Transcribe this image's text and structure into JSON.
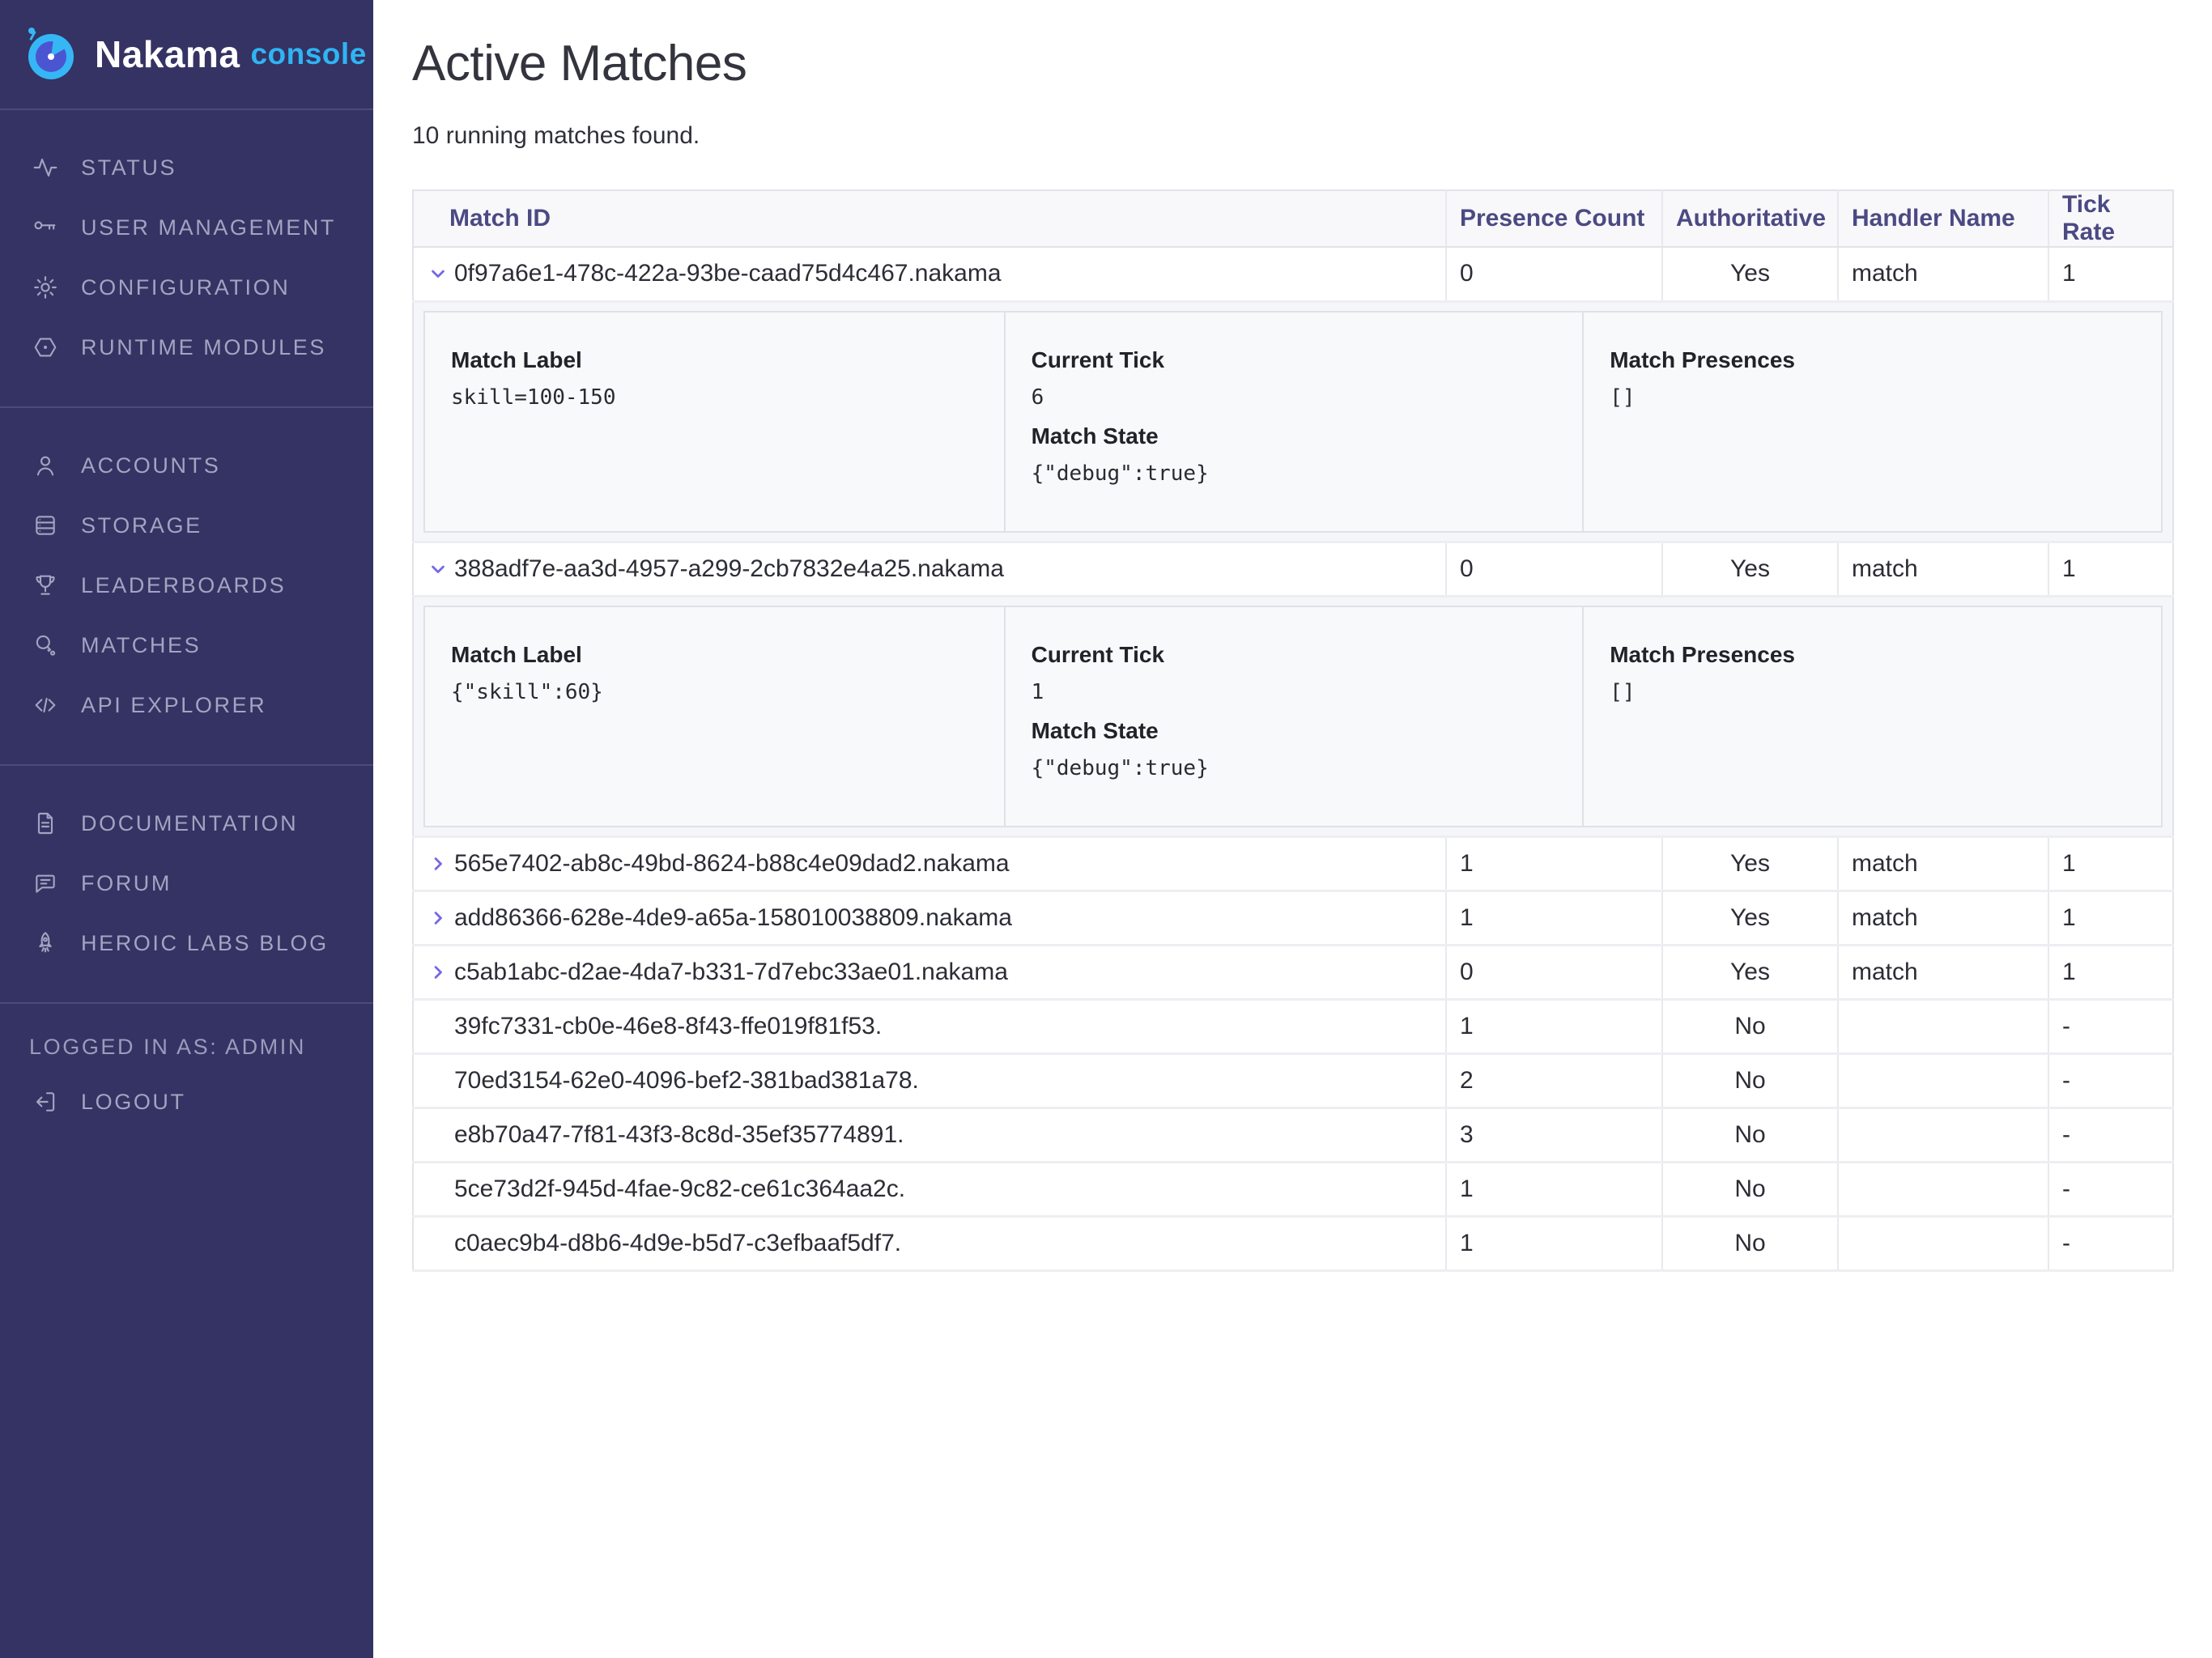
{
  "colors": {
    "sidebar_bg": "#343363",
    "accent_blue": "#2fb4f4",
    "header_text": "#4b4a83",
    "chevron_purple": "#7468e4",
    "row_border": "#eceef2"
  },
  "sidebar": {
    "logo": {
      "name": "Nakama",
      "suffix": "console",
      "icon": "nakama-robot-logo"
    },
    "sections": [
      {
        "items": [
          {
            "icon": "activity-icon",
            "label": "STATUS"
          },
          {
            "icon": "key-icon",
            "label": "USER MANAGEMENT"
          },
          {
            "icon": "gear-icon",
            "label": "CONFIGURATION"
          },
          {
            "icon": "hexagon-icon",
            "label": "RUNTIME MODULES"
          }
        ]
      },
      {
        "items": [
          {
            "icon": "user-icon",
            "label": "ACCOUNTS"
          },
          {
            "icon": "server-icon",
            "label": "STORAGE"
          },
          {
            "icon": "trophy-icon",
            "label": "LEADERBOARDS"
          },
          {
            "icon": "paddle-icon",
            "label": "MATCHES"
          },
          {
            "icon": "code-icon",
            "label": "API EXPLORER"
          }
        ]
      },
      {
        "items": [
          {
            "icon": "document-icon",
            "label": "DOCUMENTATION"
          },
          {
            "icon": "chat-icon",
            "label": "FORUM"
          },
          {
            "icon": "rocket-icon",
            "label": "HEROIC LABS BLOG"
          }
        ]
      }
    ],
    "footer": {
      "logged_in_text": "LOGGED IN AS: ADMIN",
      "logout": {
        "icon": "logout-icon",
        "label": "LOGOUT"
      }
    }
  },
  "main": {
    "title": "Active Matches",
    "subtitle": "10 running matches found.",
    "table": {
      "columns": [
        "Match ID",
        "Presence Count",
        "Authoritative",
        "Handler Name",
        "Tick Rate"
      ],
      "detail_labels": {
        "match_label": "Match Label",
        "current_tick": "Current Tick",
        "match_state": "Match State",
        "match_presences": "Match Presences"
      },
      "rows": [
        {
          "id": "0f97a6e1-478c-422a-93be-caad75d4c467.nakama",
          "presence_count": "0",
          "authoritative": "Yes",
          "handler_name": "match",
          "tick_rate": "1",
          "chevron": "down",
          "details": {
            "match_label": "skill=100-150",
            "current_tick": "6",
            "match_state": "{\"debug\":true}",
            "match_presences": "[]"
          }
        },
        {
          "id": "388adf7e-aa3d-4957-a299-2cb7832e4a25.nakama",
          "presence_count": "0",
          "authoritative": "Yes",
          "handler_name": "match",
          "tick_rate": "1",
          "chevron": "down",
          "details": {
            "match_label": "{\"skill\":60}",
            "current_tick": "1",
            "match_state": "{\"debug\":true}",
            "match_presences": "[]"
          }
        },
        {
          "id": "565e7402-ab8c-49bd-8624-b88c4e09dad2.nakama",
          "presence_count": "1",
          "authoritative": "Yes",
          "handler_name": "match",
          "tick_rate": "1",
          "chevron": "right"
        },
        {
          "id": "add86366-628e-4de9-a65a-158010038809.nakama",
          "presence_count": "1",
          "authoritative": "Yes",
          "handler_name": "match",
          "tick_rate": "1",
          "chevron": "right"
        },
        {
          "id": "c5ab1abc-d2ae-4da7-b331-7d7ebc33ae01.nakama",
          "presence_count": "0",
          "authoritative": "Yes",
          "handler_name": "match",
          "tick_rate": "1",
          "chevron": "right"
        },
        {
          "id": "39fc7331-cb0e-46e8-8f43-ffe019f81f53.",
          "presence_count": "1",
          "authoritative": "No",
          "handler_name": "",
          "tick_rate": "-",
          "chevron": "none"
        },
        {
          "id": "70ed3154-62e0-4096-bef2-381bad381a78.",
          "presence_count": "2",
          "authoritative": "No",
          "handler_name": "",
          "tick_rate": "-",
          "chevron": "none"
        },
        {
          "id": "e8b70a47-7f81-43f3-8c8d-35ef35774891.",
          "presence_count": "3",
          "authoritative": "No",
          "handler_name": "",
          "tick_rate": "-",
          "chevron": "none"
        },
        {
          "id": "5ce73d2f-945d-4fae-9c82-ce61c364aa2c.",
          "presence_count": "1",
          "authoritative": "No",
          "handler_name": "",
          "tick_rate": "-",
          "chevron": "none"
        },
        {
          "id": "c0aec9b4-d8b6-4d9e-b5d7-c3efbaaf5df7.",
          "presence_count": "1",
          "authoritative": "No",
          "handler_name": "",
          "tick_rate": "-",
          "chevron": "none"
        }
      ]
    }
  }
}
